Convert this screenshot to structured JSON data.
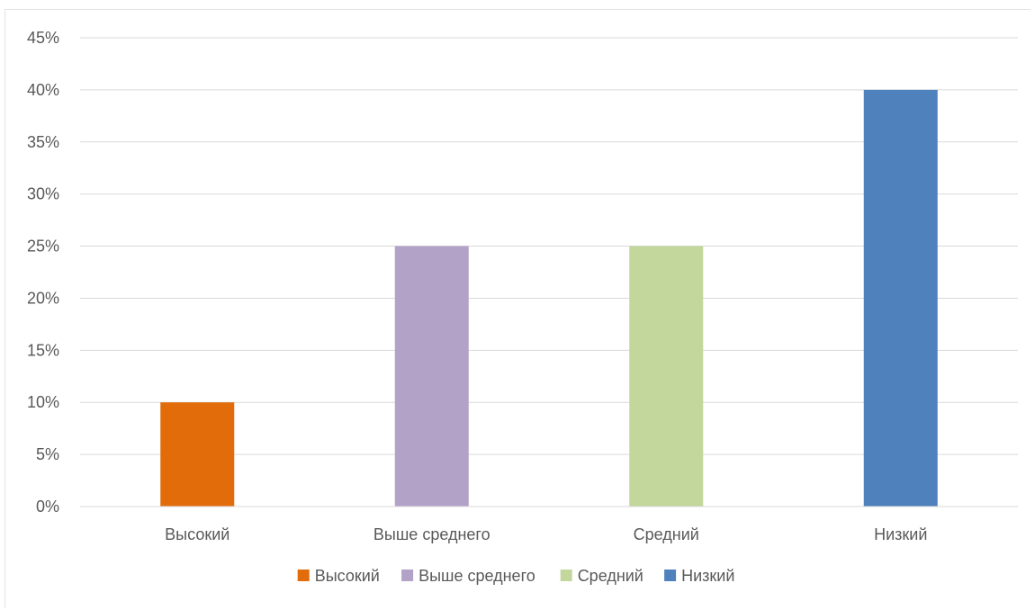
{
  "chart_data": {
    "type": "bar",
    "title": "",
    "xlabel": "",
    "ylabel": "",
    "categories": [
      "Высокий",
      "Выше среднего",
      "Средний",
      "Низкий"
    ],
    "values": [
      10,
      25,
      25,
      40
    ],
    "colors": [
      "#e36c0a",
      "#b2a2c7",
      "#c3d69b",
      "#4f81bd"
    ],
    "ylim": [
      0,
      45
    ],
    "yticks": [
      0,
      5,
      10,
      15,
      20,
      25,
      30,
      35,
      40,
      45
    ],
    "ytick_labels": [
      "0%",
      "5%",
      "10%",
      "15%",
      "20%",
      "25%",
      "30%",
      "35%",
      "40%",
      "45%"
    ],
    "grid": true,
    "legend": {
      "position": "bottom",
      "entries": [
        "Высокий",
        "Выше среднего",
        "Средний",
        "Низкий"
      ]
    }
  }
}
